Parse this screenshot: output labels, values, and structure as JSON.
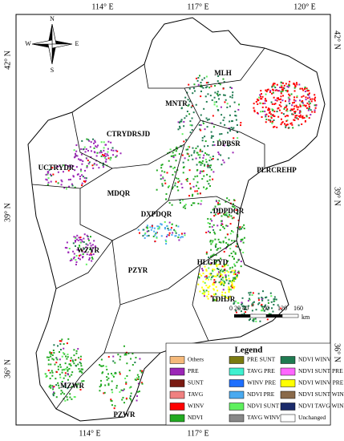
{
  "graticule": {
    "top": [
      "114° E",
      "117° E",
      "120° E"
    ],
    "bottom": [
      "114° E",
      "117° E"
    ],
    "left": [
      "42° N",
      "39° N",
      "36° N"
    ],
    "right": [
      "42° N",
      "39° N",
      "36° N"
    ]
  },
  "compass": {
    "north": "N",
    "south": "S",
    "east": "E",
    "west": "W"
  },
  "region_labels": [
    "MLH",
    "MNTR",
    "CTRYDRSJD",
    "DPBSR",
    "PLRCREHP",
    "UCTRYDR",
    "MDQR",
    "DXPDQR",
    "DDPDQR",
    "WZYR",
    "PZYR",
    "HLGPYD",
    "TDHJR",
    "MZWR",
    "PZWR"
  ],
  "scale_bar": {
    "labels": [
      "0 20 40",
      "80",
      "120",
      "160"
    ],
    "unit": "km"
  },
  "legend": {
    "title": "Legend",
    "items": [
      {
        "label": "Others",
        "color": "#f5b97a"
      },
      {
        "label": "PRE",
        "color": "#9b26b6"
      },
      {
        "label": "SUNT",
        "color": "#7a1a12"
      },
      {
        "label": "TAVG",
        "color": "#f08080"
      },
      {
        "label": "WINV",
        "color": "#ff0000"
      },
      {
        "label": "NDVI",
        "color": "#22aa22"
      },
      {
        "label": "PRE SUNT",
        "color": "#7a7a10"
      },
      {
        "label": "TAVG PRE",
        "color": "#3ef0d0"
      },
      {
        "label": "WINV PRE",
        "color": "#1e6fff"
      },
      {
        "label": "NDVI PRE",
        "color": "#4aaaf0"
      },
      {
        "label": "NDVI SUNT",
        "color": "#5ef05e"
      },
      {
        "label": "TAVG WINV",
        "color": "#888888"
      },
      {
        "label": "NDVI WINV",
        "color": "#1e7a50"
      },
      {
        "label": "NDVI SUNT PRE",
        "color": "#ff66ff"
      },
      {
        "label": "NDVI WINV PRE",
        "color": "#ffff00"
      },
      {
        "label": "NDVI SUNT WINV",
        "color": "#8a6a4a"
      },
      {
        "label": "NDVI TAVG WINV",
        "color": "#1a2a6a"
      },
      {
        "label": "Unchanged",
        "color": "#ffffff"
      }
    ]
  }
}
